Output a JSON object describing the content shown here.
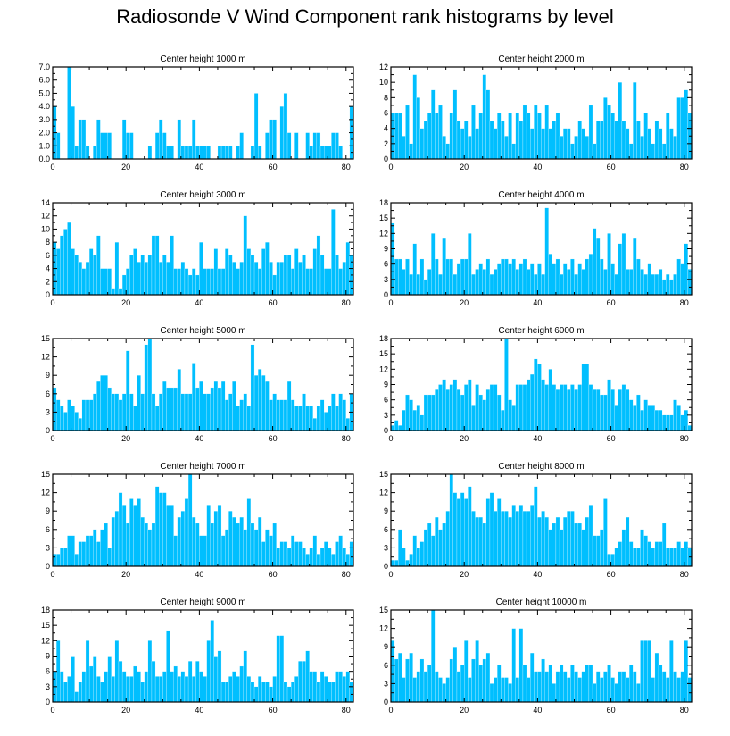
{
  "title": "Radiosonde V Wind Component rank histograms by level",
  "colors": {
    "bar": "#00BFFF",
    "axis": "#000000",
    "background": "#ffffff"
  },
  "chart_data": [
    {
      "type": "bar",
      "title": "Center height 1000 m",
      "xlim": [
        0,
        82
      ],
      "ylim": [
        0,
        7
      ],
      "xticks": [
        0,
        20,
        40,
        60,
        80
      ],
      "yticks": [
        0,
        1,
        2,
        3,
        4,
        5,
        6,
        7
      ],
      "ytick_labels": [
        "0.0",
        "1.0",
        "2.0",
        "3.0",
        "4.0",
        "5.0",
        "6.0",
        "7.0"
      ],
      "values": [
        4,
        2,
        0,
        0,
        7,
        4,
        1,
        3,
        3,
        1,
        0,
        1,
        3,
        2,
        2,
        2,
        0,
        0,
        0,
        3,
        2,
        2,
        0,
        0,
        0,
        0,
        1,
        0,
        2,
        3,
        2,
        1,
        1,
        0,
        3,
        1,
        1,
        1,
        3,
        1,
        1,
        1,
        1,
        0,
        0,
        1,
        1,
        1,
        1,
        0,
        1,
        2,
        0,
        0,
        1,
        5,
        1,
        0,
        2,
        3,
        3,
        0,
        4,
        5,
        2,
        0,
        2,
        0,
        0,
        2,
        1,
        2,
        2,
        1,
        1,
        1,
        2,
        2,
        1,
        0,
        0,
        4
      ]
    },
    {
      "type": "bar",
      "title": "Center height 2000 m",
      "xlim": [
        0,
        82
      ],
      "ylim": [
        0,
        12
      ],
      "xticks": [
        0,
        20,
        40,
        60,
        80
      ],
      "yticks": [
        0,
        2,
        4,
        6,
        8,
        10,
        12
      ],
      "ytick_labels": [
        "0",
        "2",
        "4",
        "6",
        "8",
        "10",
        "12"
      ],
      "values": [
        6,
        6,
        6,
        3,
        7,
        2,
        11,
        8,
        4,
        5,
        6,
        9,
        6,
        7,
        3,
        2,
        6,
        9,
        5,
        4,
        5,
        3,
        7,
        4,
        6,
        11,
        9,
        5,
        4,
        6,
        5,
        3,
        6,
        2,
        6,
        5,
        7,
        6,
        4,
        7,
        6,
        4,
        7,
        4,
        5,
        6,
        3,
        4,
        4,
        2,
        3,
        5,
        4,
        3,
        7,
        2,
        5,
        5,
        8,
        7,
        6,
        5,
        10,
        5,
        4,
        2,
        10,
        5,
        3,
        6,
        4,
        2,
        5,
        4,
        2,
        6,
        4,
        3,
        8,
        8,
        9,
        6
      ]
    },
    {
      "type": "bar",
      "title": "Center height 3000 m",
      "xlim": [
        0,
        82
      ],
      "ylim": [
        0,
        14
      ],
      "xticks": [
        0,
        20,
        40,
        60,
        80
      ],
      "yticks": [
        0,
        2,
        4,
        6,
        8,
        10,
        12,
        14
      ],
      "ytick_labels": [
        "0",
        "2",
        "4",
        "6",
        "8",
        "10",
        "12",
        "14"
      ],
      "values": [
        8,
        7,
        9,
        10,
        11,
        7,
        6,
        5,
        4,
        5,
        7,
        6,
        9,
        4,
        4,
        4,
        1,
        8,
        1,
        3,
        4,
        6,
        7,
        5,
        6,
        5,
        6,
        9,
        9,
        5,
        6,
        5,
        9,
        4,
        4,
        5,
        4,
        3,
        4,
        3,
        8,
        4,
        4,
        4,
        7,
        4,
        4,
        7,
        6,
        5,
        4,
        5,
        12,
        7,
        6,
        5,
        4,
        7,
        8,
        5,
        3,
        5,
        5,
        6,
        6,
        4,
        7,
        5,
        6,
        4,
        4,
        7,
        9,
        6,
        4,
        4,
        13,
        6,
        4,
        5,
        8,
        6
      ]
    },
    {
      "type": "bar",
      "title": "Center height 4000 m",
      "xlim": [
        0,
        82
      ],
      "ylim": [
        0,
        18
      ],
      "xticks": [
        0,
        20,
        40,
        60,
        80
      ],
      "yticks": [
        0,
        3,
        6,
        9,
        12,
        15,
        18
      ],
      "ytick_labels": [
        "0",
        "3",
        "6",
        "9",
        "12",
        "15",
        "18"
      ],
      "values": [
        14,
        7,
        7,
        5,
        7,
        4,
        10,
        4,
        7,
        3,
        5,
        12,
        7,
        4,
        11,
        7,
        7,
        4,
        6,
        7,
        7,
        12,
        4,
        5,
        6,
        5,
        7,
        4,
        5,
        6,
        7,
        7,
        6,
        7,
        5,
        6,
        7,
        5,
        6,
        4,
        6,
        4,
        17,
        8,
        6,
        7,
        4,
        6,
        5,
        7,
        4,
        6,
        5,
        7,
        8,
        13,
        11,
        7,
        5,
        12,
        6,
        4,
        10,
        12,
        5,
        5,
        11,
        7,
        5,
        4,
        6,
        4,
        4,
        5,
        3,
        4,
        3,
        4,
        7,
        6,
        10,
        5
      ]
    },
    {
      "type": "bar",
      "title": "Center height 5000 m",
      "xlim": [
        0,
        82
      ],
      "ylim": [
        0,
        15
      ],
      "xticks": [
        0,
        20,
        40,
        60,
        80
      ],
      "yticks": [
        0,
        3,
        6,
        9,
        12,
        15
      ],
      "ytick_labels": [
        "0",
        "3",
        "6",
        "9",
        "12",
        "15"
      ],
      "values": [
        7,
        5,
        4,
        3,
        5,
        4,
        3,
        2,
        5,
        5,
        5,
        6,
        8,
        9,
        9,
        7,
        6,
        6,
        5,
        6,
        13,
        6,
        4,
        9,
        6,
        14,
        15,
        6,
        4,
        6,
        8,
        7,
        7,
        7,
        10,
        6,
        6,
        6,
        11,
        7,
        8,
        6,
        6,
        7,
        8,
        7,
        8,
        5,
        6,
        8,
        4,
        5,
        6,
        4,
        14,
        9,
        10,
        9,
        8,
        5,
        6,
        5,
        5,
        5,
        8,
        5,
        4,
        4,
        6,
        4,
        4,
        2,
        4,
        5,
        3,
        4,
        6,
        4,
        6,
        5,
        2,
        6
      ]
    },
    {
      "type": "bar",
      "title": "Center height 6000 m",
      "xlim": [
        0,
        82
      ],
      "ylim": [
        0,
        18
      ],
      "xticks": [
        0,
        20,
        40,
        60,
        80
      ],
      "yticks": [
        0,
        3,
        6,
        9,
        12,
        15,
        18
      ],
      "ytick_labels": [
        "0",
        "3",
        "6",
        "9",
        "12",
        "15",
        "18"
      ],
      "values": [
        1,
        2,
        1,
        4,
        7,
        6,
        4,
        5,
        3,
        7,
        7,
        7,
        8,
        9,
        10,
        8,
        9,
        10,
        8,
        7,
        9,
        10,
        5,
        9,
        7,
        6,
        8,
        9,
        9,
        7,
        4,
        18,
        6,
        5,
        9,
        9,
        9,
        10,
        11,
        14,
        13,
        10,
        9,
        12,
        9,
        8,
        9,
        9,
        8,
        9,
        8,
        9,
        13,
        13,
        9,
        8,
        8,
        7,
        7,
        10,
        8,
        5,
        8,
        9,
        8,
        6,
        5,
        7,
        4,
        6,
        5,
        5,
        4,
        4,
        3,
        3,
        3,
        6,
        5,
        3,
        4,
        1
      ]
    },
    {
      "type": "bar",
      "title": "Center height 7000 m",
      "xlim": [
        0,
        82
      ],
      "ylim": [
        0,
        15
      ],
      "xticks": [
        0,
        20,
        40,
        60,
        80
      ],
      "yticks": [
        0,
        3,
        6,
        9,
        12,
        15
      ],
      "ytick_labels": [
        "0",
        "3",
        "6",
        "9",
        "12",
        "15"
      ],
      "values": [
        2,
        2,
        3,
        3,
        5,
        5,
        2,
        4,
        4,
        5,
        5,
        6,
        4,
        6,
        7,
        3,
        8,
        9,
        12,
        10,
        7,
        11,
        10,
        11,
        8,
        7,
        6,
        7,
        13,
        12,
        12,
        10,
        10,
        5,
        8,
        9,
        11,
        15,
        8,
        7,
        5,
        5,
        10,
        7,
        9,
        10,
        5,
        6,
        9,
        8,
        7,
        8,
        6,
        11,
        7,
        6,
        8,
        4,
        6,
        5,
        7,
        3,
        4,
        4,
        3,
        5,
        4,
        4,
        3,
        2,
        3,
        5,
        2,
        3,
        4,
        3,
        2,
        4,
        5,
        3,
        2,
        4
      ]
    },
    {
      "type": "bar",
      "title": "Center height 8000 m",
      "xlim": [
        0,
        82
      ],
      "ylim": [
        0,
        15
      ],
      "xticks": [
        0,
        20,
        40,
        60,
        80
      ],
      "yticks": [
        0,
        3,
        6,
        9,
        12,
        15
      ],
      "ytick_labels": [
        "0",
        "3",
        "6",
        "9",
        "12",
        "15"
      ],
      "values": [
        1,
        1,
        6,
        3,
        1,
        2,
        5,
        3,
        4,
        6,
        7,
        5,
        8,
        6,
        7,
        9,
        15,
        12,
        11,
        12,
        11,
        13,
        9,
        8,
        8,
        7,
        11,
        12,
        9,
        11,
        9,
        9,
        8,
        10,
        9,
        10,
        9,
        9,
        10,
        13,
        8,
        9,
        8,
        6,
        7,
        8,
        6,
        8,
        9,
        9,
        7,
        7,
        6,
        8,
        10,
        5,
        5,
        6,
        11,
        2,
        2,
        3,
        4,
        6,
        8,
        4,
        3,
        3,
        6,
        5,
        4,
        3,
        4,
        4,
        7,
        3,
        3,
        3,
        4,
        3,
        4,
        3
      ]
    },
    {
      "type": "bar",
      "title": "Center height 9000 m",
      "xlim": [
        0,
        82
      ],
      "ylim": [
        0,
        18
      ],
      "xticks": [
        0,
        20,
        40,
        60,
        80
      ],
      "yticks": [
        0,
        3,
        6,
        9,
        12,
        15,
        18
      ],
      "ytick_labels": [
        "0",
        "3",
        "6",
        "9",
        "12",
        "15",
        "18"
      ],
      "values": [
        6,
        12,
        6,
        4,
        5,
        9,
        2,
        4,
        6,
        12,
        7,
        9,
        5,
        4,
        6,
        9,
        5,
        12,
        8,
        6,
        5,
        5,
        7,
        6,
        4,
        6,
        12,
        8,
        5,
        5,
        6,
        14,
        6,
        7,
        5,
        6,
        5,
        8,
        5,
        8,
        6,
        5,
        12,
        16,
        9,
        10,
        4,
        4,
        5,
        6,
        5,
        7,
        10,
        5,
        4,
        3,
        5,
        4,
        4,
        3,
        5,
        13,
        13,
        4,
        3,
        4,
        5,
        8,
        8,
        10,
        6,
        6,
        4,
        6,
        5,
        4,
        4,
        6,
        6,
        5,
        6,
        4
      ]
    },
    {
      "type": "bar",
      "title": "Center height 10000 m",
      "xlim": [
        0,
        82
      ],
      "ylim": [
        0,
        15
      ],
      "xticks": [
        0,
        20,
        40,
        60,
        80
      ],
      "yticks": [
        0,
        3,
        6,
        9,
        12,
        15
      ],
      "ytick_labels": [
        "0",
        "3",
        "6",
        "9",
        "12",
        "15"
      ],
      "values": [
        10,
        7,
        8,
        4,
        7,
        8,
        4,
        5,
        7,
        5,
        6,
        15,
        5,
        4,
        3,
        4,
        7,
        9,
        5,
        6,
        10,
        4,
        7,
        10,
        6,
        7,
        8,
        3,
        4,
        6,
        4,
        4,
        3,
        12,
        4,
        12,
        6,
        4,
        8,
        5,
        5,
        7,
        5,
        6,
        3,
        5,
        6,
        5,
        4,
        6,
        5,
        4,
        5,
        6,
        6,
        3,
        5,
        4,
        5,
        6,
        4,
        3,
        5,
        5,
        4,
        6,
        5,
        3,
        10,
        10,
        10,
        4,
        8,
        6,
        5,
        4,
        10,
        5,
        4,
        5,
        10,
        4
      ]
    }
  ]
}
